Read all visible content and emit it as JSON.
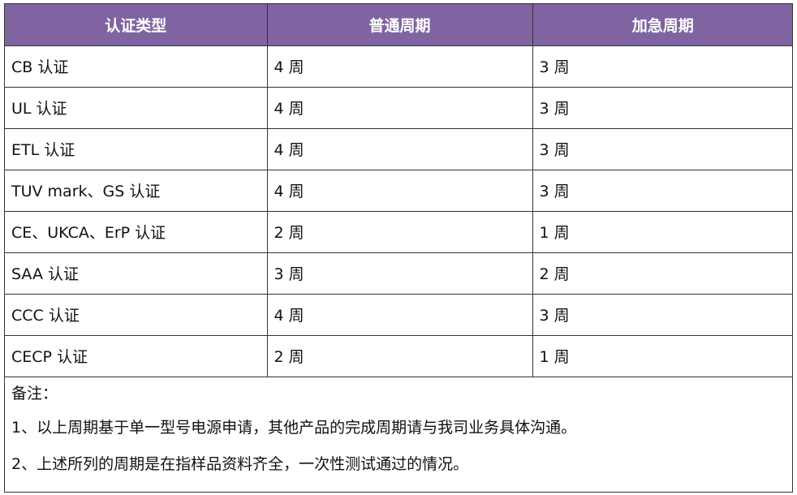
{
  "table": {
    "headers": [
      "认证类型",
      "普通周期",
      "加急周期"
    ],
    "rows": [
      [
        "CB 认证",
        "4 周",
        "3 周"
      ],
      [
        "UL 认证",
        "4 周",
        "3 周"
      ],
      [
        "ETL 认证",
        "4 周",
        "3 周"
      ],
      [
        "TUV mark、GS 认证",
        "4 周",
        "3 周"
      ],
      [
        "CE、UKCA、ErP 认证",
        "2 周",
        "1 周"
      ],
      [
        "SAA 认证",
        "3 周",
        "2 周"
      ],
      [
        "CCC 认证",
        "4 周",
        "3 周"
      ],
      [
        "CECP 认证",
        "2 周",
        "1 周"
      ]
    ]
  },
  "notes": {
    "title": "备注：",
    "items": [
      "1、以上周期基于单一型号电源申请，其他产品的完成周期请与我司业务具体沟通。",
      "2、上述所列的周期是在指样品资料齐全，一次性测试通过的情况。"
    ]
  },
  "colors": {
    "header_bg": "#8064a2",
    "header_text": "#ffffff",
    "border": "#333333"
  }
}
